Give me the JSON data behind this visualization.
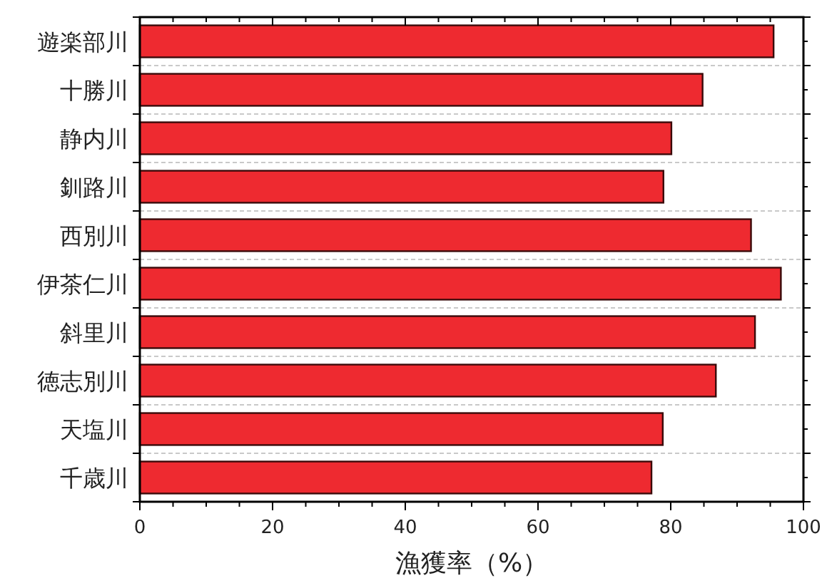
{
  "chart_data": {
    "type": "bar",
    "orientation": "horizontal",
    "xlabel": "漁獲率（%）",
    "categories": [
      "遊楽部川",
      "十勝川",
      "静内川",
      "釧路川",
      "西別川",
      "伊茶仁川",
      "斜里川",
      "徳志別川",
      "天塩川",
      "千歳川"
    ],
    "values": [
      95.5,
      84.8,
      80.1,
      78.9,
      92.1,
      96.6,
      92.7,
      86.8,
      78.8,
      77.1
    ],
    "color": "#ee2a30",
    "xlim": [
      0,
      100
    ],
    "xticks": [
      0,
      20,
      40,
      60,
      80,
      100
    ],
    "grid": "y"
  }
}
